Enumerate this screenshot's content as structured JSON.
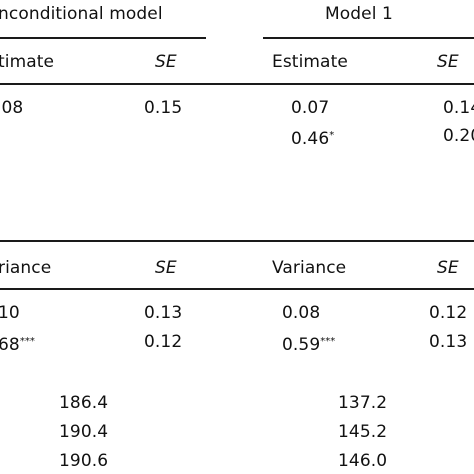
{
  "header": {
    "unconditional_model": "nconditional model",
    "model1": "Model 1"
  },
  "fixed": {
    "headers": {
      "estimate_left": "timate",
      "se_left": "SE",
      "estimate_right": "Estimate",
      "se_right": "SE"
    },
    "rows": [
      {
        "uc_est": ".08",
        "uc_se": "0.15",
        "m1_est": "0.07",
        "m1_se": "0.14"
      },
      {
        "uc_est": "",
        "uc_se": "",
        "m1_est": "0.46",
        "m1_mark": "*",
        "m1_se": "0.20"
      }
    ]
  },
  "random": {
    "headers": {
      "variance_left": "riance",
      "se_left": "SE",
      "variance_right": "Variance",
      "se_right": "SE"
    },
    "rows": [
      {
        "uc_var": "10",
        "uc_mark": "",
        "uc_se": "0.13",
        "m1_var": "0.08",
        "m1_mark": "",
        "m1_se": "0.12"
      },
      {
        "uc_var": "68",
        "uc_mark": "***",
        "uc_se": "0.12",
        "m1_var": "0.59",
        "m1_mark": "***",
        "m1_se": "0.13"
      }
    ]
  },
  "fit": {
    "rows": [
      {
        "uc": "186.4",
        "m1": "137.2"
      },
      {
        "uc": "190.4",
        "m1": "145.2"
      },
      {
        "uc": "190.6",
        "m1": "146.0"
      }
    ]
  }
}
